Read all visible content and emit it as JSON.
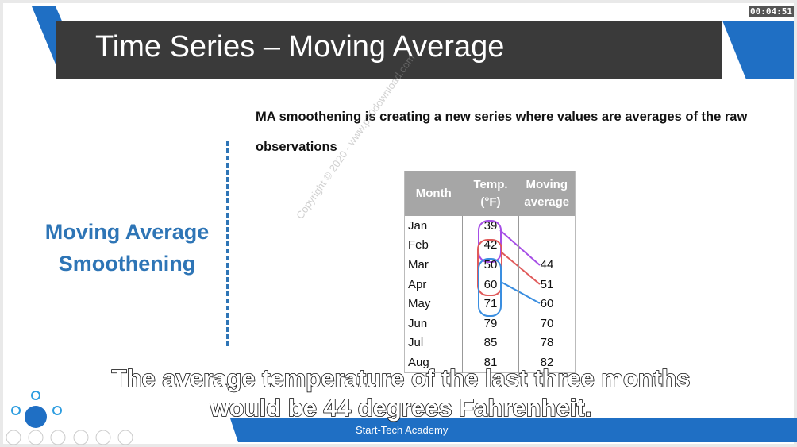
{
  "player": {
    "timer": "00:04:51"
  },
  "header": {
    "title": "Time Series – Moving Average"
  },
  "body": {
    "text": "MA smoothening is creating a new series where values are averages of the raw observations"
  },
  "sidebar": {
    "title": "Moving Average Smoothening"
  },
  "table": {
    "headers": [
      "Month",
      "Temp. (°F)",
      "Moving average"
    ],
    "rows": [
      [
        "Jan",
        39,
        null
      ],
      [
        "Feb",
        42,
        null
      ],
      [
        "Mar",
        50,
        44
      ],
      [
        "Apr",
        60,
        51
      ],
      [
        "May",
        71,
        60
      ],
      [
        "Jun",
        79,
        70
      ],
      [
        "Jul",
        85,
        78
      ],
      [
        "Aug",
        81,
        82
      ]
    ]
  },
  "watermark": "Copyright © 2020 - www.p30download.com",
  "subtitle": "The average temperature of the last three months would be 44 degrees Fahrenheit.",
  "footer": {
    "text": "Start-Tech Academy"
  }
}
